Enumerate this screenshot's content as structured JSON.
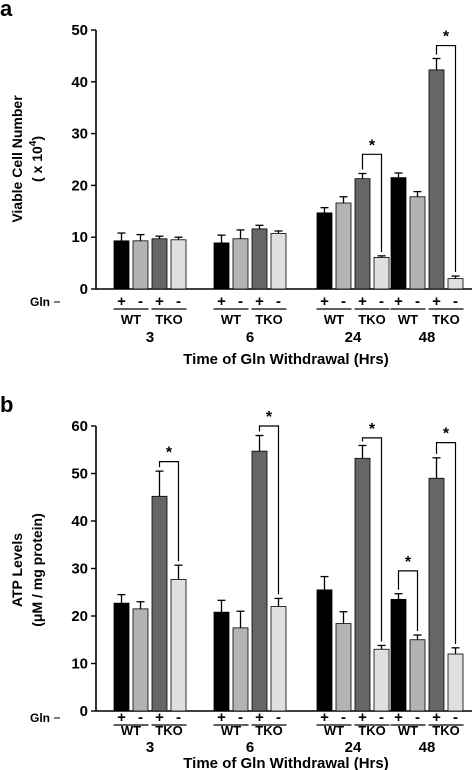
{
  "colors": {
    "plus_gln_wt": "#000000",
    "minus_gln_wt": "#b3b3b3",
    "plus_gln_tko": "#666666",
    "minus_gln_tko": "#e0e0e0",
    "axis": "#000000"
  },
  "chart_data": [
    {
      "panel_label": "a",
      "type": "bar",
      "ylabel_lines": [
        "Viable Cell Number",
        "( x 10",
        "4",
        ")"
      ],
      "xlabel": "Time of Gln Withdrawal (Hrs)",
      "ylim": [
        0,
        50
      ],
      "yticks": [
        0,
        10,
        20,
        30,
        40,
        50
      ],
      "gln_label": "Gln",
      "gln_signs": [
        "+",
        "-",
        "+",
        "-"
      ],
      "genotypes": [
        "WT",
        "TKO"
      ],
      "categories": [
        "3",
        "6",
        "24",
        "48"
      ],
      "series": [
        {
          "condition": "+ Gln",
          "genotype": "WT",
          "values": [
            9.3,
            8.9,
            14.7,
            21.5
          ],
          "errors": [
            1.5,
            1.5,
            1.0,
            0.9
          ]
        },
        {
          "condition": "- Gln",
          "genotype": "WT",
          "values": [
            9.3,
            9.7,
            16.6,
            17.8
          ],
          "errors": [
            1.2,
            1.7,
            1.2,
            1.0
          ]
        },
        {
          "condition": "+ Gln",
          "genotype": "TKO",
          "values": [
            9.7,
            11.6,
            21.3,
            42.3
          ],
          "errors": [
            0.5,
            0.7,
            1.0,
            2.2
          ]
        },
        {
          "condition": "- Gln",
          "genotype": "TKO",
          "values": [
            9.5,
            10.7,
            6.1,
            2.0
          ],
          "errors": [
            0.5,
            0.5,
            0.3,
            0.5
          ]
        }
      ],
      "significance": [
        {
          "category": 2,
          "from": 2,
          "to": 3,
          "y": 26,
          "label": "*"
        },
        {
          "category": 3,
          "from": 2,
          "to": 3,
          "y": 47,
          "label": "*"
        }
      ]
    },
    {
      "panel_label": "b",
      "type": "bar",
      "ylabel_lines": [
        "ATP Levels",
        "(μM / mg protein)"
      ],
      "xlabel": "Time of Gln Withdrawal (Hrs)",
      "ylim": [
        0,
        60
      ],
      "yticks": [
        0,
        10,
        20,
        30,
        40,
        50,
        60
      ],
      "gln_label": "Gln",
      "gln_signs": [
        "+",
        "-",
        "+",
        "-"
      ],
      "genotypes": [
        "WT",
        "TKO"
      ],
      "categories": [
        "3",
        "6",
        "24",
        "48"
      ],
      "series": [
        {
          "condition": "+ Gln",
          "genotype": "WT",
          "values": [
            22.7,
            20.8,
            25.5,
            23.5
          ],
          "errors": [
            1.8,
            2.5,
            2.8,
            1.2
          ]
        },
        {
          "condition": "- Gln",
          "genotype": "WT",
          "values": [
            21.5,
            17.5,
            18.4,
            15.0
          ],
          "errors": [
            1.5,
            3.5,
            2.5,
            1.0
          ]
        },
        {
          "condition": "+ Gln",
          "genotype": "TKO",
          "values": [
            45.2,
            54.7,
            53.2,
            49.0
          ],
          "errors": [
            5.3,
            3.3,
            2.7,
            4.3
          ]
        },
        {
          "condition": "- Gln",
          "genotype": "TKO",
          "values": [
            27.7,
            22.0,
            13.0,
            12.0
          ],
          "errors": [
            3.0,
            1.7,
            0.8,
            1.3
          ]
        }
      ],
      "significance": [
        {
          "category": 0,
          "from": 2,
          "to": 3,
          "y": 52.5,
          "label": "*"
        },
        {
          "category": 1,
          "from": 2,
          "to": 3,
          "y": 60,
          "label": "*"
        },
        {
          "category": 2,
          "from": 2,
          "to": 3,
          "y": 57.5,
          "label": "*"
        },
        {
          "category": 3,
          "from": 0,
          "to": 1,
          "y": 29.5,
          "label": "*"
        },
        {
          "category": 3,
          "from": 2,
          "to": 3,
          "y": 56.5,
          "label": "*"
        }
      ]
    }
  ]
}
